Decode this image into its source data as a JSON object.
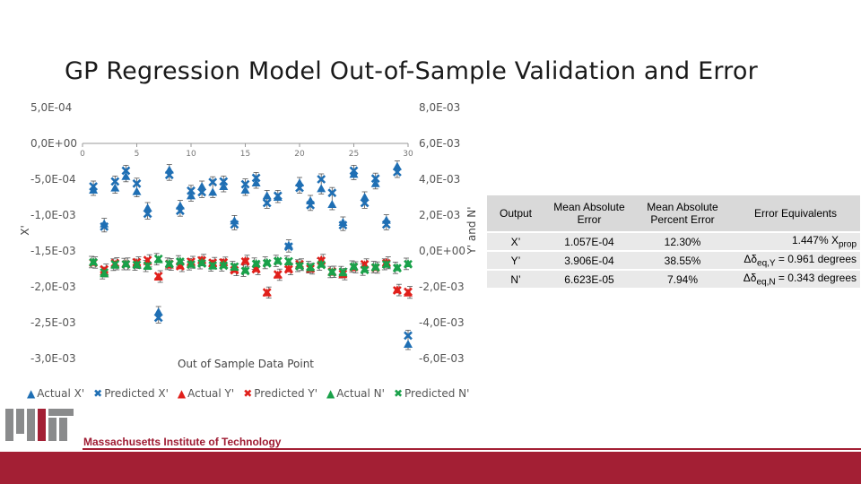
{
  "slide": {
    "title": "GP Regression Model Out-of-Sample Validation and Error",
    "footer_institution": "Massachusetts Institute of Technology",
    "accent_color": "#a31f34"
  },
  "chart_data": {
    "type": "scatter",
    "xlabel": "Out of Sample Data Point",
    "ylabel_left": "X'",
    "ylabel_right": "Y' and N'",
    "x_ticks": [
      "0",
      "5",
      "10",
      "15",
      "20",
      "25",
      "30"
    ],
    "y_left_ticks": [
      "5,0E-04",
      "0,0E+00",
      "-5,0E-04",
      "-1,0E-03",
      "-1,5E-03",
      "-2,0E-03",
      "-2,5E-03",
      "-3,0E-03"
    ],
    "y_right_ticks": [
      "8,0E-03",
      "6,0E-03",
      "4,0E-03",
      "2,0E-03",
      "0,0E+00",
      "-2,0E-03",
      "-4,0E-03",
      "-6,0E-03"
    ],
    "xlim": [
      0,
      30
    ],
    "ylim_left": [
      -0.003,
      0.0005
    ],
    "ylim_right": [
      -0.006,
      0.008
    ],
    "grid": false,
    "legend_position": "bottom",
    "series": [
      {
        "name": "Actual X'",
        "axis": "left",
        "marker": "triangle",
        "color": "#1f6fb4",
        "x": [
          1,
          2,
          3,
          4,
          5,
          6,
          7,
          8,
          9,
          10,
          11,
          12,
          13,
          14,
          15,
          16,
          17,
          18,
          19,
          20,
          21,
          22,
          23,
          24,
          25,
          26,
          27,
          28,
          29,
          30
        ],
        "y": [
          -0.00065,
          -0.00112,
          -0.00062,
          -0.00046,
          -0.00067,
          -0.0009,
          -0.00235,
          -0.00037,
          -0.00087,
          -0.00073,
          -0.0006,
          -0.00068,
          -0.0006,
          -0.00108,
          -0.00065,
          -0.00055,
          -0.00073,
          -0.00075,
          -0.00142,
          -0.00055,
          -0.0008,
          -0.00063,
          -0.00085,
          -0.0011,
          -0.00043,
          -0.00075,
          -0.00056,
          -0.00107,
          -0.00032,
          -0.0028
        ]
      },
      {
        "name": "Predicted X'",
        "axis": "left",
        "marker": "x",
        "color": "#1f6fb4",
        "x": [
          1,
          2,
          3,
          4,
          5,
          6,
          7,
          8,
          9,
          10,
          11,
          12,
          13,
          14,
          15,
          16,
          17,
          18,
          19,
          20,
          21,
          22,
          23,
          24,
          25,
          26,
          27,
          28,
          29,
          30
        ],
        "y": [
          -0.0006,
          -0.00116,
          -0.00053,
          -0.00038,
          -0.00056,
          -0.00098,
          -0.00243,
          -0.00044,
          -0.00094,
          -0.00066,
          -0.00068,
          -0.00054,
          -0.00053,
          -0.00113,
          -0.00057,
          -0.00048,
          -0.00083,
          -0.00073,
          -0.00144,
          -0.00062,
          -0.00086,
          -0.0005,
          -0.00069,
          -0.00114,
          -0.00038,
          -0.00083,
          -0.00049,
          -0.00113,
          -0.0004,
          -0.00268
        ]
      },
      {
        "name": "Actual Y'",
        "axis": "right",
        "marker": "triangle",
        "color": "#e0201b",
        "x": [
          1,
          2,
          3,
          4,
          5,
          6,
          7,
          8,
          9,
          10,
          11,
          12,
          13,
          14,
          15,
          16,
          17,
          18,
          19,
          20,
          21,
          22,
          23,
          24,
          25,
          26,
          27,
          28,
          29,
          30
        ],
        "y": [
          -0.00063,
          -0.00115,
          -0.00075,
          -0.00069,
          -0.00068,
          -0.00059,
          -0.00145,
          -0.00078,
          -0.00082,
          -0.00066,
          -0.00049,
          -0.0007,
          -0.00064,
          -0.00101,
          -0.00054,
          -0.00098,
          -0.00233,
          -0.00134,
          -0.00099,
          -0.00079,
          -0.00099,
          -0.00049,
          -0.00118,
          -0.00131,
          -0.00092,
          -0.00077,
          -0.00091,
          -0.00063,
          -0.00216,
          -0.00234
        ]
      },
      {
        "name": "Predicted Y'",
        "axis": "right",
        "marker": "x",
        "color": "#e0201b",
        "x": [
          1,
          2,
          3,
          4,
          5,
          6,
          7,
          8,
          9,
          10,
          11,
          12,
          13,
          14,
          15,
          16,
          17,
          18,
          19,
          20,
          21,
          22,
          23,
          24,
          25,
          26,
          27,
          28,
          29,
          30
        ],
        "y": [
          -0.00066,
          -0.00103,
          -0.00068,
          -0.00075,
          -0.00063,
          -0.00051,
          -0.0014,
          -0.00072,
          -0.00085,
          -0.0006,
          -0.00053,
          -0.00066,
          -0.00064,
          -0.00108,
          -0.00059,
          -0.00102,
          -0.00231,
          -0.00131,
          -0.00103,
          -0.00074,
          -0.00099,
          -0.00055,
          -0.00115,
          -0.00128,
          -0.0009,
          -0.00074,
          -0.00094,
          -0.00069,
          -0.0022,
          -0.00228
        ]
      },
      {
        "name": "Actual N'",
        "axis": "right",
        "marker": "triangle",
        "color": "#1aa14a",
        "x": [
          1,
          2,
          3,
          4,
          5,
          6,
          7,
          8,
          9,
          10,
          11,
          12,
          13,
          14,
          15,
          16,
          17,
          18,
          19,
          20,
          21,
          22,
          23,
          24,
          25,
          26,
          27,
          28,
          29,
          30
        ],
        "y": [
          -0.0006,
          -0.00126,
          -0.00079,
          -0.00071,
          -0.00075,
          -0.00085,
          -0.00048,
          -0.00069,
          -0.00056,
          -0.00073,
          -0.00064,
          -0.00083,
          -0.00076,
          -0.0009,
          -0.00107,
          -0.00069,
          -0.00063,
          -0.00054,
          -0.0006,
          -0.00079,
          -0.00093,
          -0.00073,
          -0.00116,
          -0.00121,
          -0.00085,
          -0.00102,
          -0.00088,
          -0.00074,
          -0.00092,
          -0.0007
        ]
      },
      {
        "name": "Predicted N'",
        "axis": "right",
        "marker": "x",
        "color": "#1aa14a",
        "x": [
          1,
          2,
          3,
          4,
          5,
          6,
          7,
          8,
          9,
          10,
          11,
          12,
          13,
          14,
          15,
          16,
          17,
          18,
          19,
          20,
          21,
          22,
          23,
          24,
          25,
          26,
          27,
          28,
          29,
          30
        ],
        "y": [
          -0.00064,
          -0.0012,
          -0.00074,
          -0.00075,
          -0.00078,
          -0.00082,
          -0.00044,
          -0.00074,
          -0.0006,
          -0.00076,
          -0.0007,
          -0.00081,
          -0.00082,
          -0.00088,
          -0.00112,
          -0.00073,
          -0.00069,
          -0.00057,
          -0.00058,
          -0.00085,
          -0.00088,
          -0.00078,
          -0.00119,
          -0.00116,
          -0.00089,
          -0.00106,
          -0.00092,
          -0.00075,
          -0.00096,
          -0.00074
        ]
      }
    ]
  },
  "table": {
    "headers": [
      "Output",
      "Mean Absolute Error",
      "Mean Absolute Percent Error",
      "Error Equivalents"
    ],
    "rows": [
      {
        "output": "X’",
        "mae": "1.057E-04",
        "mape": "12.30%",
        "eq_main": "1.447% X",
        "eq_sub": "prop"
      },
      {
        "output": "Y’",
        "mae": "3.906E-04",
        "mape": "38.55%",
        "eq_main": "Δδ",
        "eq_sub": "eq,Y",
        "eq_tail": " = 0.961 degrees"
      },
      {
        "output": "N’",
        "mae": "6.623E-05",
        "mape": "7.94%",
        "eq_main": "Δδ",
        "eq_sub": "eq,N",
        "eq_tail": " = 0.343 degrees"
      }
    ]
  },
  "legend": {
    "items": [
      {
        "label": "Actual X'",
        "symbol": "▲",
        "color": "#1f6fb4"
      },
      {
        "label": "Predicted X'",
        "symbol": "✖",
        "color": "#1f6fb4"
      },
      {
        "label": "Actual Y'",
        "symbol": "▲",
        "color": "#e0201b"
      },
      {
        "label": "Predicted Y'",
        "symbol": "✖",
        "color": "#e0201b"
      },
      {
        "label": "Actual N'",
        "symbol": "▲",
        "color": "#1aa14a"
      },
      {
        "label": "Predicted N'",
        "symbol": "✖",
        "color": "#1aa14a"
      }
    ]
  }
}
